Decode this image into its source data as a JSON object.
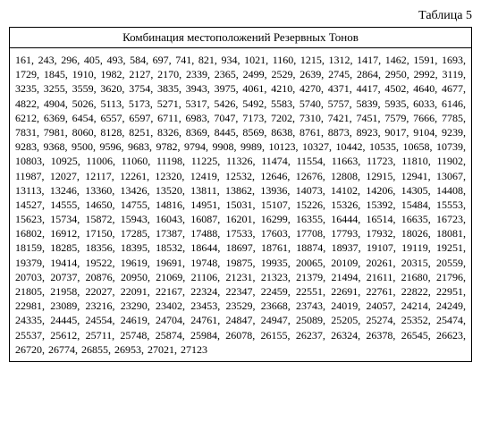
{
  "label": "Таблица 5",
  "header": "Комбинация местоположений Резервных Тонов",
  "numbers": "161, 243, 296, 405, 493, 584, 697, 741, 821, 934, 1021, 1160, 1215, 1312, 1417, 1462, 1591, 1693, 1729, 1845, 1910, 1982, 2127, 2170, 2339, 2365, 2499, 2529, 2639, 2745, 2864, 2950, 2992, 3119, 3235, 3255, 3559, 3620, 3754, 3835, 3943, 3975, 4061, 4210, 4270, 4371, 4417, 4502, 4640, 4677, 4822, 4904, 5026, 5113, 5173, 5271, 5317, 5426, 5492, 5583, 5740, 5757, 5839, 5935, 6033, 6146, 6212, 6369, 6454, 6557, 6597, 6711, 6983, 7047, 7173, 7202, 7310, 7421, 7451, 7579, 7666, 7785, 7831, 7981, 8060, 8128, 8251, 8326, 8369, 8445, 8569, 8638, 8761, 8873, 8923, 9017, 9104, 9239, 9283, 9368, 9500, 9596, 9683, 9782, 9794, 9908, 9989, 10123, 10327, 10442, 10535, 10658, 10739, 10803, 10925, 11006, 11060, 11198, 11225, 11326, 11474, 11554, 11663, 11723, 11810, 11902, 11987, 12027, 12117, 12261, 12320, 12419, 12532, 12646, 12676, 12808, 12915, 12941, 13067, 13113, 13246, 13360, 13426, 13520, 13811, 13862, 13936, 14073, 14102, 14206, 14305, 14408, 14527, 14555, 14650, 14755, 14816, 14951, 15031, 15107, 15226, 15326, 15392, 15484, 15553, 15623, 15734, 15872, 15943, 16043, 16087, 16201, 16299, 16355, 16444, 16514, 16635, 16723, 16802, 16912, 17150, 17285, 17387, 17488, 17533, 17603, 17708, 17793, 17932, 18026, 18081, 18159, 18285, 18356, 18395, 18532, 18644, 18697, 18761, 18874, 18937, 19107, 19119, 19251, 19379, 19414, 19522, 19619, 19691, 19748, 19875, 19935, 20065, 20109, 20261, 20315, 20559, 20703, 20737, 20876, 20950, 21069, 21106, 21231, 21323, 21379, 21494, 21611, 21680, 21796, 21805, 21958, 22027, 22091, 22167, 22324, 22347, 22459, 22551, 22691, 22761, 22822, 22951, 22981, 23089, 23216, 23290, 23402, 23453, 23529, 23668, 23743, 24019, 24057, 24214, 24249, 24335, 24445, 24554, 24619, 24704, 24761, 24847, 24947, 25089, 25205, 25274, 25352, 25474, 25537, 25612, 25711, 25748, 25874, 25984, 26078, 26155, 26237, 26324, 26378, 26545, 26623, 26720, 26774, 26855, 26953, 27021, 27123"
}
